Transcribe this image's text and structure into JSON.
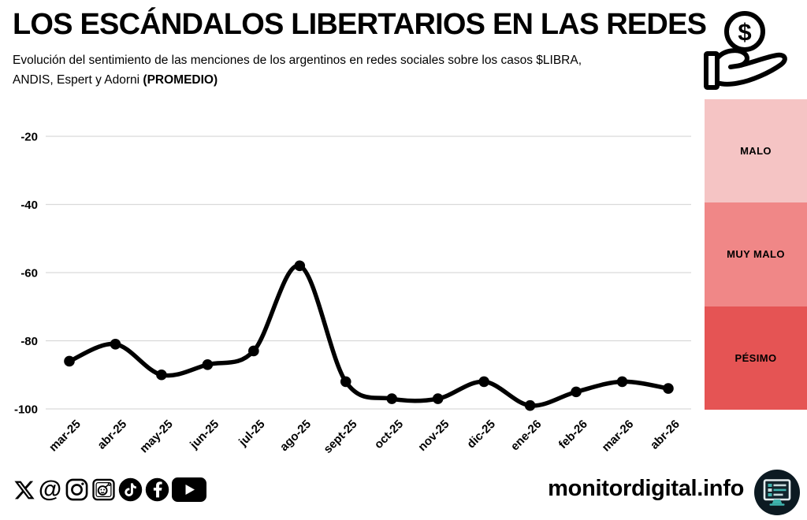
{
  "header": {
    "title": "LOS ESCÁNDALOS LIBERTARIOS EN LAS REDES",
    "subtitle_line1": "Evolución del sentimiento de las menciones de los argentinos en redes sociales sobre los casos $LIBRA,",
    "subtitle_line2": "ANDIS, Espert y Adorni ",
    "subtitle_line2_bold": "(PROMEDIO)",
    "title_icon": "hand-receiving-dollar-coin-icon"
  },
  "chart_data": {
    "type": "line",
    "title": "LOS ESCÁNDALOS LIBERTARIOS EN LAS REDES",
    "subtitle": "Evolución del sentimiento de las menciones de los argentinos en redes sociales sobre los casos $LIBRA, ANDIS, Espert y Adorni (PROMEDIO)",
    "categories": [
      "mar-25",
      "abr-25",
      "may-25",
      "jun-25",
      "jul-25",
      "ago-25",
      "sept-25",
      "oct-25",
      "nov-25",
      "dic-25",
      "ene-26",
      "feb-26",
      "mar-26",
      "abr-26"
    ],
    "values": [
      -86,
      -81,
      -90,
      -87,
      -83,
      -58,
      -92,
      -97,
      -97,
      -92,
      -99,
      -95,
      -92,
      -94
    ],
    "yticks": [
      -20,
      -40,
      -60,
      -80,
      -100
    ],
    "ylim": [
      -102,
      -12
    ],
    "xlabel": "",
    "ylabel": "",
    "grid": true,
    "grid_color": "#d9d9d9",
    "line_color": "#000000",
    "marker": "circle",
    "marker_color": "#000000",
    "legend_position": "right"
  },
  "legend": {
    "bands": [
      {
        "label": "MALO",
        "color": "#f5c4c4"
      },
      {
        "label": "MUY MALO",
        "color": "#f08787"
      },
      {
        "label": "PÉSIMO",
        "color": "#e55454"
      }
    ]
  },
  "footer": {
    "social_icons": [
      "x-icon",
      "threads-icon",
      "instagram-icon",
      "reddit-icon",
      "tiktok-icon",
      "facebook-icon",
      "youtube-icon"
    ],
    "brand": "monitordigital.info",
    "brand_logo": "monitor-screen-icon",
    "logo_bg": "#0c1a22",
    "logo_accent": "#3fb3ae"
  }
}
